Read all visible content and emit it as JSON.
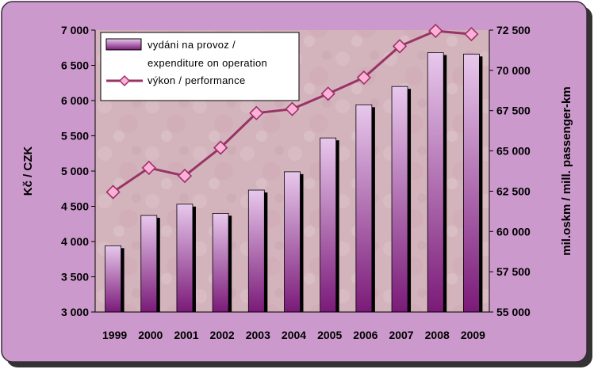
{
  "colors": {
    "frame_fill": "#cc99cc",
    "frame_border": "#3a2a3a",
    "plot_bg": "#d6b8c0",
    "bar_top": "#e8c8ec",
    "bar_bottom": "#7a1a78",
    "bar_shadow": "#000000",
    "line": "#993366",
    "marker_fill": "#ffb0d8",
    "legend_bg": "#ffffff"
  },
  "chart_data": {
    "type": "bar",
    "categories": [
      "1999",
      "2000",
      "2001",
      "2002",
      "2003",
      "2004",
      "2005",
      "2006",
      "2007",
      "2008",
      "2009"
    ],
    "series": [
      {
        "name": "vydáni na provoz / expenditure on operation",
        "type": "bar",
        "axis": "left",
        "values": [
          3940,
          4370,
          4530,
          4400,
          4730,
          4990,
          5470,
          5940,
          6200,
          6680,
          6660
        ]
      },
      {
        "name": "výkon / performance",
        "type": "line",
        "axis": "right",
        "values": [
          62450,
          63950,
          63450,
          65200,
          67350,
          67600,
          68550,
          69550,
          71500,
          72450,
          72250
        ]
      }
    ],
    "legend": {
      "bar_label_line1": "vydáni na provoz /",
      "bar_label_line2": "expenditure on operation",
      "line_label": "výkon / performance",
      "position": "top-left"
    },
    "y_left": {
      "label": "Kč / CZK",
      "ylim": [
        3000,
        7000
      ],
      "ticks": [
        3000,
        3500,
        4000,
        4500,
        5000,
        5500,
        6000,
        6500,
        7000
      ],
      "tick_labels": [
        "3 000",
        "3 500",
        "4 000",
        "4 500",
        "5 000",
        "5 500",
        "6 000",
        "6 500",
        "7 000"
      ]
    },
    "y_right": {
      "label": "mil.oskm / mill. passenger-km",
      "ylim": [
        55000,
        72500
      ],
      "ticks": [
        55000,
        57500,
        60000,
        62500,
        65000,
        67500,
        70000,
        72500
      ],
      "tick_labels": [
        "55 000",
        "57 500",
        "60 000",
        "62 500",
        "65 000",
        "67 500",
        "70 000",
        "72 500"
      ]
    },
    "grid": false
  }
}
